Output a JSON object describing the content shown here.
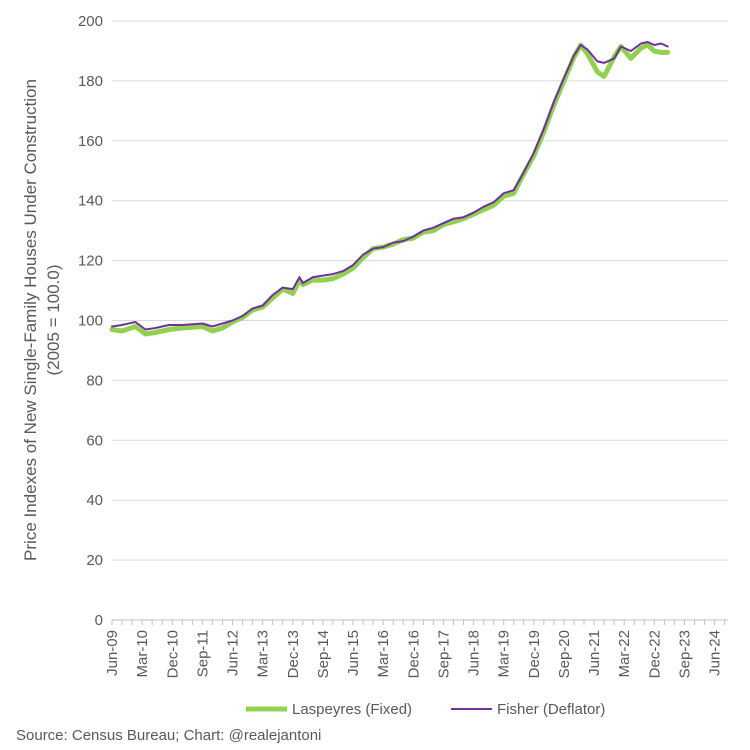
{
  "chart_data": {
    "type": "line",
    "ylabel_line1": "Price Indexes of New Single-Family Houses Under Construction",
    "ylabel_line2": "(2005 = 100.0)",
    "ylim": [
      0,
      200
    ],
    "yticks": [
      0,
      20,
      40,
      60,
      80,
      100,
      120,
      140,
      160,
      180,
      200
    ],
    "x_tick_labels": [
      "Jun-09",
      "Mar-10",
      "Dec-10",
      "Sep-11",
      "Jun-12",
      "Mar-13",
      "Dec-13",
      "Sep-14",
      "Jun-15",
      "Mar-16",
      "Dec-16",
      "Sep-17",
      "Jun-18",
      "Mar-19",
      "Dec-19",
      "Sep-20",
      "Jun-21",
      "Mar-22",
      "Dec-22",
      "Sep-23",
      "Jun-24"
    ],
    "x_start": "Jun-09",
    "x_end": "Oct-24",
    "months": 185,
    "series": [
      {
        "name": "Laspeyres (Fixed)",
        "color": "#92d050",
        "points": [
          [
            0,
            97
          ],
          [
            3,
            96.5
          ],
          [
            7,
            98
          ],
          [
            10,
            95.5
          ],
          [
            13,
            96
          ],
          [
            17,
            97
          ],
          [
            21,
            97.5
          ],
          [
            27,
            98
          ],
          [
            30,
            96.5
          ],
          [
            33,
            97.5
          ],
          [
            36,
            99.5
          ],
          [
            39,
            101
          ],
          [
            42,
            103.5
          ],
          [
            45,
            104.5
          ],
          [
            48,
            107.5
          ],
          [
            51,
            110.5
          ],
          [
            54,
            109
          ],
          [
            56,
            113.5
          ],
          [
            57,
            112
          ],
          [
            60,
            113.5
          ],
          [
            63,
            113.5
          ],
          [
            66,
            114
          ],
          [
            69,
            115.5
          ],
          [
            72,
            117.5
          ],
          [
            75,
            121
          ],
          [
            78,
            124
          ],
          [
            81,
            124.5
          ],
          [
            84,
            125.5
          ],
          [
            87,
            127
          ],
          [
            90,
            127.5
          ],
          [
            93,
            129.5
          ],
          [
            96,
            130
          ],
          [
            99,
            132
          ],
          [
            102,
            133
          ],
          [
            105,
            134
          ],
          [
            108,
            135.5
          ],
          [
            111,
            137
          ],
          [
            114,
            138.5
          ],
          [
            117,
            141.5
          ],
          [
            120,
            142.5
          ],
          [
            123,
            149
          ],
          [
            126,
            155
          ],
          [
            129,
            163
          ],
          [
            132,
            172
          ],
          [
            135,
            180
          ],
          [
            138,
            188
          ],
          [
            140,
            192
          ],
          [
            142,
            189
          ],
          [
            145,
            183
          ],
          [
            147,
            181.5
          ],
          [
            150,
            188
          ],
          [
            152,
            191.5
          ],
          [
            155,
            187.5
          ],
          [
            158,
            191
          ],
          [
            160,
            192
          ],
          [
            162,
            190
          ],
          [
            164,
            189.5
          ],
          [
            166,
            189.5
          ]
        ]
      },
      {
        "name": "Fisher (Deflator)",
        "color": "#7030a0",
        "points": [
          [
            0,
            98
          ],
          [
            3,
            98.5
          ],
          [
            7,
            99.5
          ],
          [
            10,
            97
          ],
          [
            13,
            97.5
          ],
          [
            17,
            98.5
          ],
          [
            21,
            98.5
          ],
          [
            27,
            99
          ],
          [
            30,
            98
          ],
          [
            33,
            99
          ],
          [
            36,
            100
          ],
          [
            39,
            101.5
          ],
          [
            42,
            104
          ],
          [
            45,
            105
          ],
          [
            48,
            108.5
          ],
          [
            51,
            111
          ],
          [
            54,
            110.5
          ],
          [
            56,
            114.5
          ],
          [
            57,
            112.5
          ],
          [
            60,
            114.5
          ],
          [
            63,
            115
          ],
          [
            66,
            115.5
          ],
          [
            69,
            116.5
          ],
          [
            72,
            118.5
          ],
          [
            75,
            122
          ],
          [
            78,
            124
          ],
          [
            81,
            124.5
          ],
          [
            84,
            126
          ],
          [
            87,
            126.5
          ],
          [
            90,
            128
          ],
          [
            93,
            130
          ],
          [
            96,
            131
          ],
          [
            99,
            132.5
          ],
          [
            102,
            134
          ],
          [
            105,
            134.5
          ],
          [
            108,
            136
          ],
          [
            111,
            138
          ],
          [
            114,
            139.5
          ],
          [
            117,
            142.5
          ],
          [
            120,
            143.5
          ],
          [
            123,
            149.5
          ],
          [
            126,
            156
          ],
          [
            129,
            164
          ],
          [
            132,
            173
          ],
          [
            135,
            181
          ],
          [
            138,
            188.5
          ],
          [
            140,
            192
          ],
          [
            142,
            190.5
          ],
          [
            145,
            186.5
          ],
          [
            147,
            186
          ],
          [
            150,
            187.5
          ],
          [
            152,
            191.5
          ],
          [
            155,
            190
          ],
          [
            158,
            192.5
          ],
          [
            160,
            193
          ],
          [
            162,
            192
          ],
          [
            164,
            192.5
          ],
          [
            166,
            191.5
          ]
        ]
      }
    ]
  },
  "source": "Source: Census Bureau; Chart: @realejantoni"
}
